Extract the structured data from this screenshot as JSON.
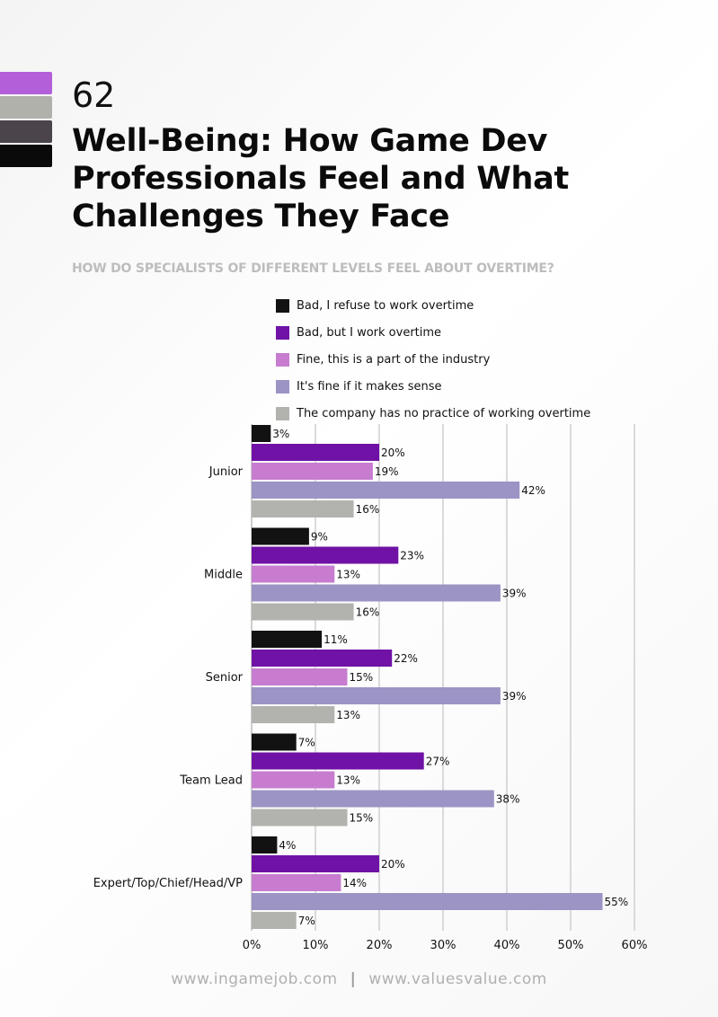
{
  "header": {
    "page_number": "62",
    "title": "Well-Being: How Game Dev Professionals Feel and What Challenges They Face",
    "subtitle": "HOW DO SPECIALISTS OF DIFFERENT LEVELS FEEL ABOUT OVERTIME?",
    "swatch_colors": [
      "#b35fd9",
      "#b1b1ab",
      "#4b454b",
      "#0a0a0a"
    ]
  },
  "chart_data": {
    "type": "bar",
    "orientation": "horizontal",
    "title": "",
    "xlabel": "",
    "ylabel": "",
    "categories": [
      "Junior",
      "Middle",
      "Senior",
      "Team Lead",
      "Expert/Top/Chief/Head/VP"
    ],
    "series": [
      {
        "name": "Bad, I refuse to work overtime",
        "color": "#121212",
        "values": [
          3,
          9,
          11,
          7,
          4
        ]
      },
      {
        "name": "Bad, but I work overtime",
        "color": "#6f12a5",
        "values": [
          20,
          23,
          22,
          27,
          20
        ]
      },
      {
        "name": "Fine, this is a part of the industry",
        "color": "#c77ccf",
        "values": [
          19,
          13,
          15,
          13,
          14
        ]
      },
      {
        "name": "It's fine if it makes sense",
        "color": "#9b94c4",
        "values": [
          42,
          39,
          39,
          38,
          55
        ]
      },
      {
        "name": "The company has no practice of working overtime",
        "color": "#b2b2ae",
        "values": [
          16,
          16,
          13,
          15,
          7
        ]
      }
    ],
    "xlim": [
      0,
      60
    ],
    "xticks": [
      "0%",
      "10%",
      "20%",
      "30%",
      "40%",
      "50%",
      "60%"
    ],
    "value_suffix": "%",
    "grid": true,
    "legend_position": "top"
  },
  "footer": {
    "left": "www.ingamejob.com",
    "separator": "|",
    "right": "www.valuesvalue.com"
  }
}
